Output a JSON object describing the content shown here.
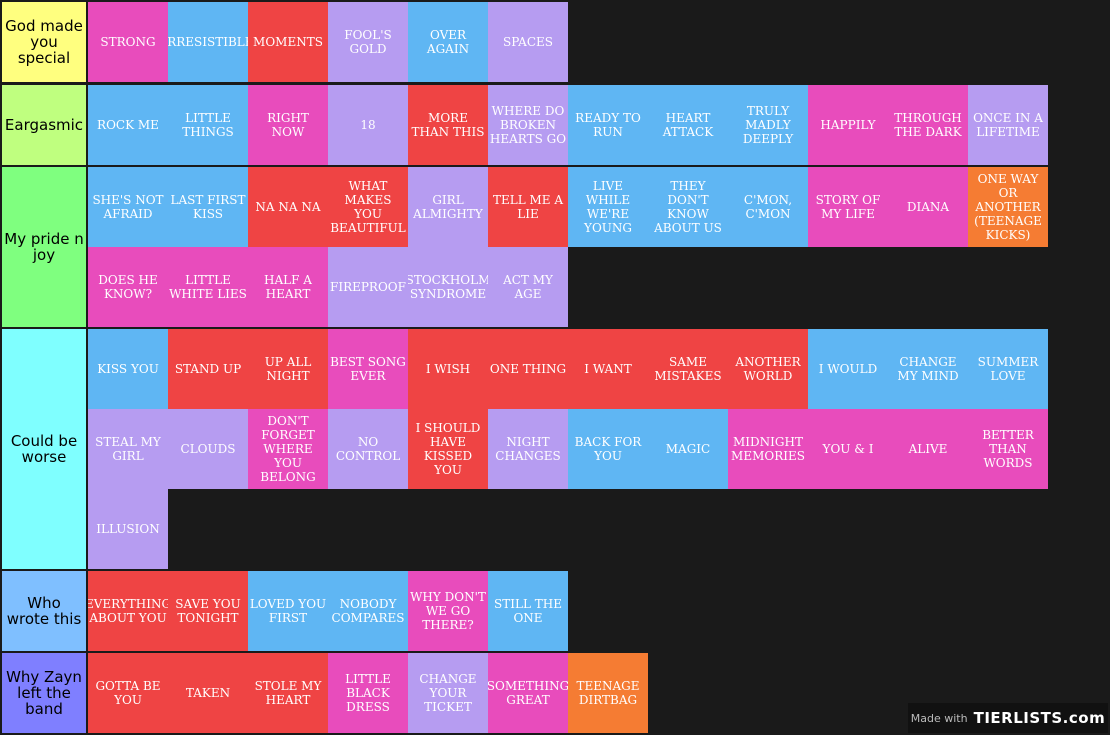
{
  "colors": {
    "pink": "#e84cbc",
    "blue": "#5fb6f3",
    "red": "#ef4444",
    "purple": "#b69cf1",
    "orange": "#f57c33"
  },
  "tiers": [
    {
      "label": "God made you special",
      "color": "#ffff7f",
      "items": [
        {
          "text": "STRONG",
          "color": "pink"
        },
        {
          "text": "IRRESISTIBLE",
          "color": "blue"
        },
        {
          "text": "MOMENTS",
          "color": "red"
        },
        {
          "text": "FOOL'S GOLD",
          "color": "purple"
        },
        {
          "text": "OVER AGAIN",
          "color": "blue"
        },
        {
          "text": "SPACES",
          "color": "purple"
        }
      ]
    },
    {
      "label": "Eargasmic",
      "color": "#bfff7f",
      "items": [
        {
          "text": "ROCK ME",
          "color": "blue"
        },
        {
          "text": "LITTLE THINGS",
          "color": "blue"
        },
        {
          "text": "RIGHT NOW",
          "color": "pink"
        },
        {
          "text": "18",
          "color": "purple"
        },
        {
          "text": "MORE THAN THIS",
          "color": "red"
        },
        {
          "text": "WHERE DO BROKEN HEARTS GO",
          "color": "purple"
        },
        {
          "text": "READY TO RUN",
          "color": "blue"
        },
        {
          "text": "HEART ATTACK",
          "color": "blue"
        },
        {
          "text": "TRULY MADLY DEEPLY",
          "color": "blue"
        },
        {
          "text": "HAPPILY",
          "color": "pink"
        },
        {
          "text": "THROUGH THE DARK",
          "color": "pink"
        },
        {
          "text": "ONCE IN A LIFETIME",
          "color": "purple"
        }
      ]
    },
    {
      "label": "My pride n joy",
      "color": "#7fff7f",
      "items": [
        {
          "text": "SHE'S NOT AFRAID",
          "color": "blue"
        },
        {
          "text": "LAST FIRST KISS",
          "color": "blue"
        },
        {
          "text": "NA NA NA",
          "color": "red"
        },
        {
          "text": "WHAT MAKES YOU BEAUTIFUL",
          "color": "red"
        },
        {
          "text": "GIRL ALMIGHTY",
          "color": "purple"
        },
        {
          "text": "TELL ME A LIE",
          "color": "red"
        },
        {
          "text": "LIVE WHILE WE'RE YOUNG",
          "color": "blue"
        },
        {
          "text": "THEY DON'T KNOW ABOUT US",
          "color": "blue"
        },
        {
          "text": "C'MON, C'MON",
          "color": "blue"
        },
        {
          "text": "STORY OF MY LIFE",
          "color": "pink"
        },
        {
          "text": "DIANA",
          "color": "pink"
        },
        {
          "text": "ONE WAY OR ANOTHER (TEENAGE KICKS)",
          "color": "orange"
        },
        {
          "text": "DOES HE KNOW?",
          "color": "pink"
        },
        {
          "text": "LITTLE WHITE LIES",
          "color": "pink"
        },
        {
          "text": "HALF A HEART",
          "color": "pink"
        },
        {
          "text": "FIREPROOF",
          "color": "purple"
        },
        {
          "text": "STOCKHOLM SYNDROME",
          "color": "purple"
        },
        {
          "text": "ACT MY AGE",
          "color": "purple"
        }
      ]
    },
    {
      "label": "Could be worse",
      "color": "#7fffff",
      "items": [
        {
          "text": "KISS YOU",
          "color": "blue"
        },
        {
          "text": "STAND UP",
          "color": "red"
        },
        {
          "text": "UP ALL NIGHT",
          "color": "red"
        },
        {
          "text": "BEST SONG EVER",
          "color": "pink"
        },
        {
          "text": "I WISH",
          "color": "red"
        },
        {
          "text": "ONE THING",
          "color": "red"
        },
        {
          "text": "I WANT",
          "color": "red"
        },
        {
          "text": "SAME MISTAKES",
          "color": "red"
        },
        {
          "text": "ANOTHER WORLD",
          "color": "red"
        },
        {
          "text": "I WOULD",
          "color": "blue"
        },
        {
          "text": "CHANGE MY MIND",
          "color": "blue"
        },
        {
          "text": "SUMMER LOVE",
          "color": "blue"
        },
        {
          "text": "STEAL MY GIRL",
          "color": "purple"
        },
        {
          "text": "CLOUDS",
          "color": "purple"
        },
        {
          "text": "DON'T FORGET WHERE YOU BELONG",
          "color": "pink"
        },
        {
          "text": "NO CONTROL",
          "color": "purple"
        },
        {
          "text": "I SHOULD HAVE KISSED YOU",
          "color": "red"
        },
        {
          "text": "NIGHT CHANGES",
          "color": "purple"
        },
        {
          "text": "BACK FOR YOU",
          "color": "blue"
        },
        {
          "text": "MAGIC",
          "color": "blue"
        },
        {
          "text": "MIDNIGHT MEMORIES",
          "color": "pink"
        },
        {
          "text": "YOU & I",
          "color": "pink"
        },
        {
          "text": "ALIVE",
          "color": "pink"
        },
        {
          "text": "BETTER THAN WORDS",
          "color": "pink"
        },
        {
          "text": "ILLUSION",
          "color": "purple"
        }
      ]
    },
    {
      "label": "Who wrote this",
      "color": "#7fbfff",
      "items": [
        {
          "text": "EVERYTHING ABOUT YOU",
          "color": "red"
        },
        {
          "text": "SAVE YOU TONIGHT",
          "color": "red"
        },
        {
          "text": "LOVED YOU FIRST",
          "color": "blue"
        },
        {
          "text": "NOBODY COMPARES",
          "color": "blue"
        },
        {
          "text": "WHY DON'T WE GO THERE?",
          "color": "pink"
        },
        {
          "text": "STILL THE ONE",
          "color": "blue"
        }
      ]
    },
    {
      "label": "Why Zayn left the band",
      "color": "#7f7fff",
      "items": [
        {
          "text": "GOTTA BE YOU",
          "color": "red"
        },
        {
          "text": "TAKEN",
          "color": "red"
        },
        {
          "text": "STOLE MY HEART",
          "color": "red"
        },
        {
          "text": "LITTLE BLACK DRESS",
          "color": "pink"
        },
        {
          "text": "CHANGE YOUR TICKET",
          "color": "purple"
        },
        {
          "text": "SOMETHING GREAT",
          "color": "pink"
        },
        {
          "text": "TEENAGE DIRTBAG",
          "color": "orange"
        }
      ]
    }
  ],
  "watermark": {
    "prefix": "Made with",
    "brand": "TIERLISTS.com"
  }
}
